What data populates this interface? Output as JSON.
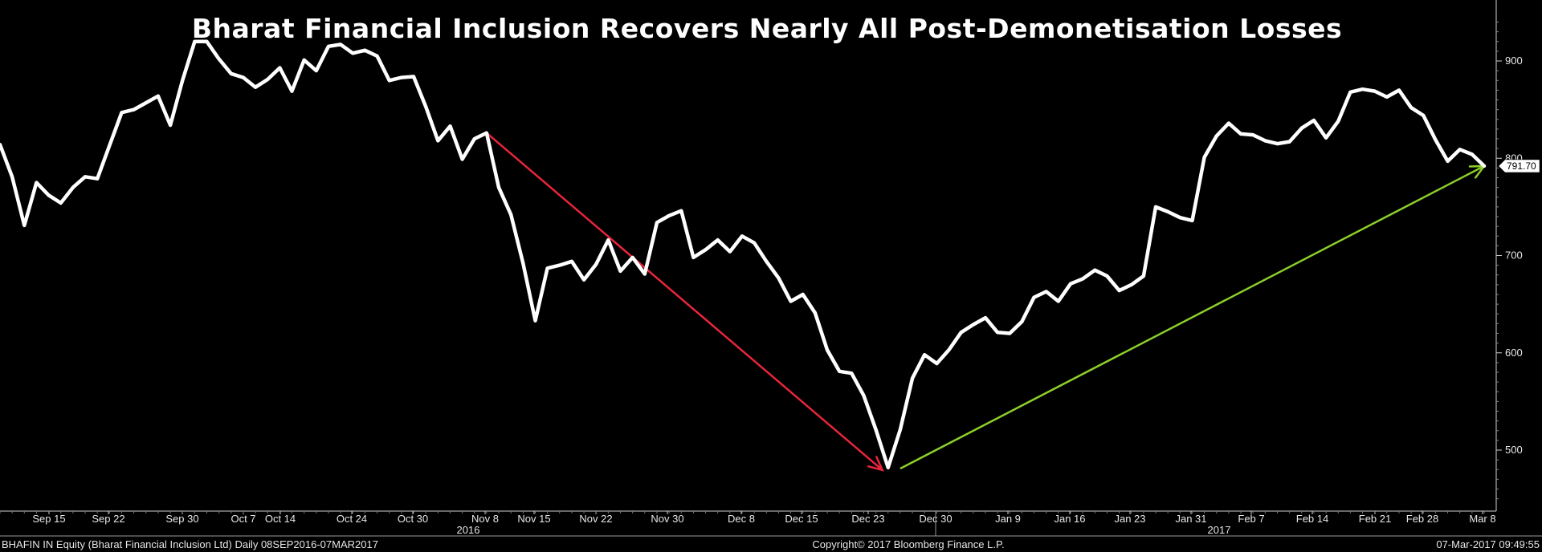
{
  "chart_data": {
    "type": "line",
    "title": "Bharat Financial Inclusion Recovers Nearly All Post-Demonetisation Losses",
    "xlabel": "",
    "ylabel": "",
    "ylim": [
      445,
      945
    ],
    "grid": false,
    "legend": "none",
    "y_ticks": [
      500,
      600,
      700,
      800,
      900
    ],
    "x_ticks": [
      "Sep 15",
      "Sep 22",
      "Sep 30",
      "Oct 7",
      "Oct 14",
      "Oct 24",
      "Oct 30",
      "Nov 8",
      "Nov 15",
      "Nov 22",
      "Nov 30",
      "Dec 8",
      "Dec 15",
      "Dec 23",
      "Dec 30",
      "Jan 9",
      "Jan 16",
      "Jan 23",
      "Jan 31",
      "Feb 7",
      "Feb 14",
      "Feb 21",
      "Feb 28",
      "Mar 8"
    ],
    "year_labels": [
      "2016",
      "2017"
    ],
    "last_value_label": "791.70",
    "series": [
      {
        "color": "#ffffff",
        "values": [
          814,
          781,
          731,
          775,
          762,
          754,
          770,
          781,
          779,
          813,
          847,
          850,
          857,
          864,
          834,
          880,
          920,
          920,
          902,
          887,
          883,
          873,
          881,
          893,
          869,
          901,
          890,
          915,
          917,
          908,
          911,
          905,
          880,
          883,
          884,
          853,
          818,
          833,
          799,
          820,
          826,
          770,
          742,
          692,
          633,
          687,
          690,
          694,
          675,
          691,
          716,
          684,
          698,
          681,
          734,
          741,
          746,
          698,
          706,
          716,
          704,
          720,
          713,
          694,
          677,
          653,
          660,
          641,
          603,
          581,
          579,
          556,
          521,
          482,
          521,
          574,
          598,
          589,
          603,
          621,
          629,
          636,
          621,
          620,
          632,
          657,
          663,
          653,
          671,
          676,
          685,
          679,
          664,
          670,
          679,
          750,
          745,
          739,
          736,
          801,
          823,
          836,
          825,
          824,
          818,
          815,
          817,
          831,
          839,
          821,
          838,
          868,
          871,
          869,
          863,
          870,
          852,
          844,
          819,
          797,
          809,
          804,
          792
        ]
      }
    ],
    "annotations": [
      {
        "type": "arrow",
        "color": "#e8253b",
        "from": {
          "index": 40,
          "value": 826
        },
        "to": {
          "index": 72,
          "value": 482
        }
      },
      {
        "type": "arrow",
        "color": "#8ccf2a",
        "from": {
          "index": 74,
          "value": 481
        },
        "to": {
          "index": 122,
          "value": 792
        }
      }
    ]
  },
  "footer": {
    "left": "BHAFIN IN Equity (Bharat Financial Inclusion Ltd)  Daily 08SEP2016-07MAR2017",
    "center": "Copyright© 2017 Bloomberg Finance L.P.",
    "right": "07-Mar-2017 09:49:55"
  }
}
